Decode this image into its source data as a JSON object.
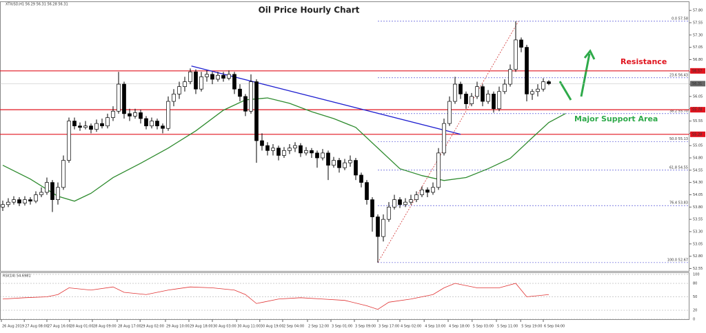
{
  "chart_data": {
    "type": "candlestick",
    "title": "Oil Price Hourly Chart",
    "info": "XTIUSD,H1 56.29 56.31 56.28 56.31",
    "xlim": [
      -0.5,
      124.5
    ],
    "ylim": [
      52.5,
      57.9
    ],
    "yticks": [
      52.55,
      {
        "value": 52.8,
        "label": "52.80"
      },
      53.05,
      {
        "value": 53.3,
        "label": "53.30"
      },
      53.55,
      {
        "value": 53.8,
        "label": "53.80"
      },
      54.05,
      {
        "value": 54.3,
        "label": "54.30"
      },
      54.55,
      {
        "value": 54.8,
        "label": "54.80"
      },
      55.05,
      {
        "value": 55.3,
        "label": "55.30"
      },
      55.55,
      {
        "value": 55.8,
        "label": "55.80"
      },
      56.05,
      {
        "value": 56.3,
        "label": "56.30"
      },
      56.55,
      {
        "value": 56.8,
        "label": "56.80"
      },
      57.05,
      {
        "value": 57.3,
        "label": "57.30"
      },
      57.55,
      {
        "value": 57.8,
        "label": "57.80"
      }
    ],
    "xticks": [
      {
        "value": -0.25,
        "label": "26 Aug 2019"
      },
      {
        "value": 3.9,
        "label": "27 Aug 08:00"
      },
      {
        "value": 8,
        "label": "27 Aug 16:00"
      },
      {
        "value": 12.1,
        "label": "28 Aug 01:00"
      },
      {
        "value": 16.25,
        "label": "28 Aug 09:00"
      },
      {
        "value": 20.75,
        "label": "28 Aug 17:00"
      },
      {
        "value": 24.9,
        "label": "29 Aug 02:00"
      },
      {
        "value": 29.5,
        "label": "29 Aug 10:00"
      },
      {
        "value": 33.75,
        "label": "29 Aug 18:00"
      },
      {
        "value": 38,
        "label": "30 Aug 03:00"
      },
      {
        "value": 42.4,
        "label": "30 Aug 11:00"
      },
      {
        "value": 46.6,
        "label": "30 Aug 19:00"
      },
      {
        "value": 50.75,
        "label": "2 Sep 04:00"
      },
      {
        "value": 55.25,
        "label": "2 Sep 12:00"
      },
      {
        "value": 59.5,
        "label": "3 Sep 01:00"
      },
      {
        "value": 63.75,
        "label": "3 Sep 09:00"
      },
      {
        "value": 68,
        "label": "3 Sep 17:00"
      },
      {
        "value": 72,
        "label": "4 Sep 02:00"
      },
      {
        "value": 76.4,
        "label": "4 Sep 10:00"
      },
      {
        "value": 80.75,
        "label": "4 Sep 18:00"
      },
      {
        "value": 85.1,
        "label": "5 Sep 03:00"
      },
      {
        "value": 89.5,
        "label": "5 Sep 11:00"
      },
      {
        "value": 93.9,
        "label": "5 Sep 19:00"
      },
      {
        "value": 98,
        "label": "6 Sep 04:00"
      }
    ],
    "candles": [
      [
        53.8,
        53.93,
        53.72,
        53.85
      ],
      [
        53.85,
        53.98,
        53.8,
        53.9
      ],
      [
        53.9,
        54.02,
        53.85,
        53.95
      ],
      [
        53.95,
        54.0,
        53.82,
        53.88
      ],
      [
        53.88,
        54.02,
        53.83,
        53.95
      ],
      [
        53.95,
        54.0,
        53.85,
        53.92
      ],
      [
        53.92,
        54.12,
        53.88,
        54.05
      ],
      [
        54.05,
        54.2,
        54.0,
        54.1
      ],
      [
        54.1,
        54.4,
        54.05,
        54.3
      ],
      [
        54.3,
        54.35,
        53.7,
        53.95
      ],
      [
        53.95,
        54.3,
        53.85,
        54.2
      ],
      [
        54.2,
        54.85,
        54.15,
        54.75
      ],
      [
        54.75,
        55.62,
        54.7,
        55.55
      ],
      [
        55.55,
        55.62,
        55.38,
        55.45
      ],
      [
        55.45,
        55.52,
        55.35,
        55.42
      ],
      [
        55.42,
        55.55,
        55.38,
        55.45
      ],
      [
        55.45,
        55.5,
        55.3,
        55.38
      ],
      [
        55.38,
        55.58,
        55.33,
        55.5
      ],
      [
        55.5,
        55.6,
        55.4,
        55.45
      ],
      [
        55.45,
        55.7,
        55.4,
        55.62
      ],
      [
        55.62,
        55.85,
        55.55,
        55.75
      ],
      [
        55.75,
        56.55,
        55.7,
        56.3
      ],
      [
        56.3,
        56.35,
        55.6,
        55.7
      ],
      [
        55.7,
        55.8,
        55.55,
        55.65
      ],
      [
        55.65,
        55.8,
        55.6,
        55.72
      ],
      [
        55.72,
        55.78,
        55.5,
        55.6
      ],
      [
        55.6,
        55.65,
        55.38,
        55.45
      ],
      [
        55.45,
        55.62,
        55.4,
        55.55
      ],
      [
        55.55,
        55.6,
        55.38,
        55.45
      ],
      [
        55.45,
        55.5,
        55.3,
        55.4
      ],
      [
        55.4,
        56.05,
        55.35,
        55.95
      ],
      [
        55.95,
        56.2,
        55.85,
        56.1
      ],
      [
        56.1,
        56.35,
        56.0,
        56.25
      ],
      [
        56.25,
        56.45,
        56.15,
        56.35
      ],
      [
        56.35,
        56.62,
        56.3,
        56.55
      ],
      [
        56.55,
        56.6,
        56.1,
        56.2
      ],
      [
        56.2,
        56.55,
        56.15,
        56.45
      ],
      [
        56.45,
        56.58,
        56.35,
        56.5
      ],
      [
        56.5,
        56.55,
        56.3,
        56.4
      ],
      [
        56.4,
        56.55,
        56.35,
        56.48
      ],
      [
        56.48,
        56.55,
        56.35,
        56.42
      ],
      [
        56.42,
        56.58,
        56.38,
        56.5
      ],
      [
        56.5,
        56.55,
        56.1,
        56.2
      ],
      [
        56.2,
        56.3,
        55.95,
        56.05
      ],
      [
        56.05,
        56.1,
        55.65,
        55.75
      ],
      [
        55.75,
        56.5,
        55.7,
        56.35
      ],
      [
        56.35,
        56.4,
        54.7,
        55.15
      ],
      [
        55.15,
        55.3,
        54.95,
        55.05
      ],
      [
        55.05,
        55.12,
        54.85,
        54.95
      ],
      [
        54.95,
        55.08,
        54.85,
        55.0
      ],
      [
        55.0,
        55.05,
        54.75,
        54.85
      ],
      [
        54.85,
        55.02,
        54.8,
        54.95
      ],
      [
        54.95,
        55.08,
        54.88,
        55.0
      ],
      [
        55.0,
        55.12,
        54.92,
        55.05
      ],
      [
        55.05,
        55.1,
        54.82,
        54.9
      ],
      [
        54.9,
        55.02,
        54.85,
        54.95
      ],
      [
        54.95,
        55.0,
        54.8,
        54.9
      ],
      [
        54.9,
        54.95,
        54.6,
        54.8
      ],
      [
        54.8,
        54.98,
        54.75,
        54.9
      ],
      [
        54.9,
        54.95,
        54.35,
        54.65
      ],
      [
        54.65,
        54.82,
        54.6,
        54.75
      ],
      [
        54.75,
        54.8,
        54.5,
        54.6
      ],
      [
        54.6,
        54.78,
        54.55,
        54.7
      ],
      [
        54.7,
        54.85,
        54.62,
        54.75
      ],
      [
        54.75,
        54.8,
        54.35,
        54.45
      ],
      [
        54.45,
        54.5,
        54.2,
        54.3
      ],
      [
        54.3,
        54.35,
        53.85,
        53.95
      ],
      [
        53.95,
        54.0,
        53.3,
        53.6
      ],
      [
        53.6,
        53.65,
        52.67,
        53.2
      ],
      [
        53.2,
        53.65,
        53.1,
        53.55
      ],
      [
        53.55,
        53.9,
        53.5,
        53.8
      ],
      [
        53.8,
        54.05,
        53.75,
        53.95
      ],
      [
        53.95,
        54.0,
        53.78,
        53.85
      ],
      [
        53.85,
        53.98,
        53.8,
        53.9
      ],
      [
        53.9,
        54.05,
        53.85,
        53.95
      ],
      [
        53.95,
        54.12,
        53.9,
        54.05
      ],
      [
        54.05,
        54.22,
        54.0,
        54.15
      ],
      [
        54.15,
        54.2,
        54.0,
        54.1
      ],
      [
        54.1,
        54.3,
        54.05,
        54.2
      ],
      [
        54.2,
        55.0,
        54.15,
        54.9
      ],
      [
        54.9,
        55.6,
        54.85,
        55.5
      ],
      [
        55.5,
        56.05,
        55.45,
        55.95
      ],
      [
        55.95,
        56.45,
        55.9,
        56.3
      ],
      [
        56.3,
        56.35,
        56.0,
        56.1
      ],
      [
        56.1,
        56.15,
        55.8,
        55.9
      ],
      [
        55.9,
        56.12,
        55.85,
        56.05
      ],
      [
        56.05,
        56.35,
        56.0,
        56.25
      ],
      [
        56.25,
        56.3,
        55.85,
        55.95
      ],
      [
        55.95,
        56.18,
        55.9,
        56.1
      ],
      [
        56.1,
        56.15,
        55.72,
        55.8
      ],
      [
        55.8,
        56.25,
        55.75,
        56.15
      ],
      [
        56.15,
        56.4,
        56.1,
        56.3
      ],
      [
        56.3,
        56.7,
        56.25,
        56.6
      ],
      [
        56.6,
        57.58,
        56.55,
        57.2
      ],
      [
        57.2,
        57.25,
        56.95,
        57.05
      ],
      [
        57.05,
        57.1,
        55.95,
        56.1
      ],
      [
        56.1,
        56.2,
        55.98,
        56.15
      ],
      [
        56.15,
        56.3,
        56.05,
        56.2
      ],
      [
        56.2,
        56.42,
        56.15,
        56.35
      ],
      [
        56.35,
        56.38,
        56.28,
        56.31
      ]
    ],
    "ma": {
      "color": "#2e8b2e",
      "x": [
        0,
        5,
        10,
        13,
        16,
        20,
        25,
        30,
        35,
        40,
        44,
        48,
        52,
        56,
        60,
        64,
        68,
        72,
        76,
        80,
        84,
        88,
        92,
        96,
        99,
        102
      ],
      "values": [
        54.65,
        54.37,
        54.02,
        53.92,
        54.08,
        54.4,
        54.69,
        55.0,
        55.35,
        55.77,
        55.98,
        56.02,
        55.91,
        55.74,
        55.6,
        55.42,
        55.0,
        54.58,
        54.44,
        54.34,
        54.4,
        54.58,
        54.79,
        55.21,
        55.52,
        55.7
      ]
    },
    "trendline": {
      "color": "#1f1fd0",
      "x": [
        34.2,
        83
      ],
      "values": [
        56.67,
        55.28
      ]
    },
    "fib_line": {
      "color": "#d03030",
      "x": [
        68,
        93.5
      ],
      "values": [
        52.67,
        57.58
      ]
    },
    "fib_levels": [
      {
        "value": 57.58,
        "label": "0.0 57.58"
      },
      {
        "value": 56.43,
        "label": "23.6 56.43"
      },
      {
        "value": 55.7,
        "label": "38.2 55.70"
      },
      {
        "value": 55.13,
        "label": "50.0 55.13"
      },
      {
        "value": 54.55,
        "label": "61.8 54.55"
      },
      {
        "value": 53.83,
        "label": "76.4 53.83"
      },
      {
        "value": 52.67,
        "label": "100.0 52.67"
      }
    ],
    "levels": [
      56.57,
      55.78,
      55.28
    ],
    "level_color": "#e0141e",
    "current": 56.31,
    "resistance": "Resistance",
    "support": "Major Support Area",
    "rsi": {
      "label": "RSI(14) 54.6981",
      "color": "#e03030",
      "ylim": [
        0,
        100
      ],
      "yticks": [
        100,
        80,
        50,
        20,
        0
      ],
      "x": [
        0,
        4,
        8,
        10,
        12,
        16,
        20,
        22,
        26,
        30,
        34,
        38,
        42,
        44,
        46,
        50,
        54,
        58,
        62,
        66,
        68,
        70,
        74,
        78,
        80,
        82,
        86,
        90,
        93,
        95,
        99
      ],
      "values": [
        45,
        48,
        50,
        55,
        70,
        65,
        72,
        60,
        55,
        65,
        72,
        70,
        65,
        55,
        35,
        45,
        48,
        45,
        42,
        30,
        22,
        38,
        45,
        55,
        70,
        80,
        70,
        70,
        80,
        50,
        55
      ]
    }
  }
}
